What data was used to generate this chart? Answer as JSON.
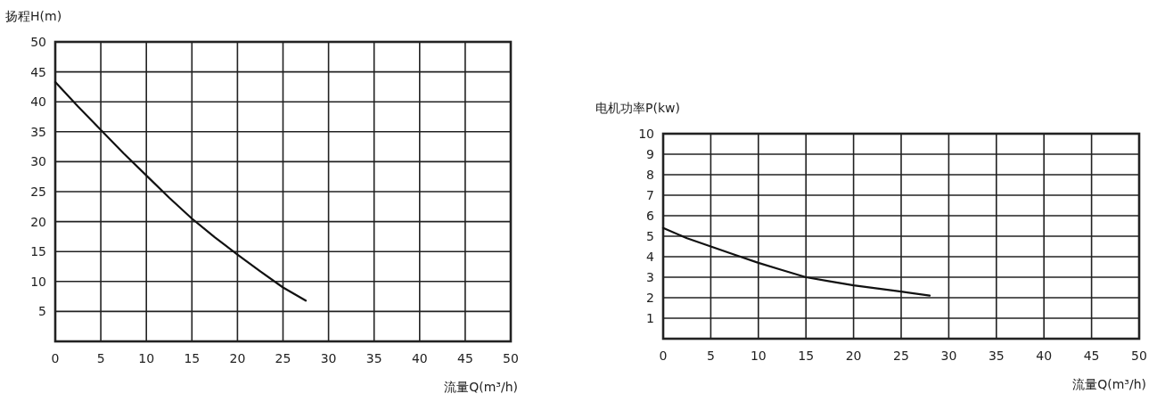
{
  "chart_data": [
    {
      "type": "line",
      "ylabel": "扬程H(m)",
      "xlabel": "流量Q(m³/h)",
      "x": [
        0,
        2.5,
        5,
        7.5,
        10,
        12.5,
        15,
        17.5,
        20,
        22.5,
        25,
        27.5
      ],
      "series": [
        {
          "color": "#111111",
          "values": [
            43.3,
            39.2,
            35.3,
            31.4,
            27.7,
            24.0,
            20.5,
            17.4,
            14.5,
            11.7,
            9.0,
            6.8
          ]
        }
      ],
      "xlim": [
        0,
        50
      ],
      "xticks": [
        0,
        5,
        10,
        15,
        20,
        25,
        30,
        35,
        40,
        45,
        50
      ],
      "ylim": [
        0,
        50
      ],
      "yticks": [
        {
          "value": 0,
          "label": null
        },
        5,
        10,
        15,
        20,
        25,
        30,
        35,
        40,
        45,
        50
      ],
      "grid": true,
      "marker": "none",
      "line_style": "solid"
    },
    {
      "type": "line",
      "ylabel": "电机功率P(kw)",
      "xlabel": "流量Q(m³/h)",
      "x": [
        0,
        2.5,
        5,
        7.5,
        10,
        12.5,
        15,
        17.5,
        20,
        22.5,
        25,
        28
      ],
      "series": [
        {
          "color": "#111111",
          "values": [
            5.4,
            4.9,
            4.5,
            4.1,
            3.7,
            3.35,
            3.0,
            2.8,
            2.6,
            2.45,
            2.3,
            2.1
          ]
        }
      ],
      "xlim": [
        0,
        50
      ],
      "xticks": [
        0,
        5,
        10,
        15,
        20,
        25,
        30,
        35,
        40,
        45,
        50
      ],
      "ylim": [
        0,
        10
      ],
      "yticks": [
        {
          "value": 0,
          "label": null
        },
        1,
        2,
        3,
        4,
        5,
        6,
        7,
        8,
        9,
        10
      ],
      "grid": true,
      "marker": "none",
      "line_style": "solid"
    }
  ]
}
